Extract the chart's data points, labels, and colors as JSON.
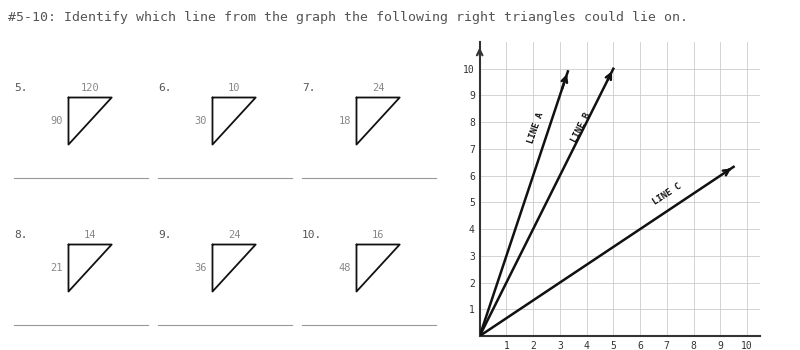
{
  "title": "#5-10: Identify which line from the graph the following right triangles could lie on.",
  "title_fontsize": 9.5,
  "title_color": "#555555",
  "bg_color": "#ffffff",
  "triangles": [
    {
      "num": "5.",
      "top_label": "120",
      "side_label": "90",
      "row": 0,
      "col": 0
    },
    {
      "num": "6.",
      "top_label": "10",
      "side_label": "30",
      "row": 0,
      "col": 1
    },
    {
      "num": "7.",
      "top_label": "24",
      "side_label": "18",
      "row": 0,
      "col": 2
    },
    {
      "num": "8.",
      "top_label": "14",
      "side_label": "21",
      "row": 1,
      "col": 0
    },
    {
      "num": "9.",
      "top_label": "24",
      "side_label": "36",
      "row": 1,
      "col": 1
    },
    {
      "num": "10.",
      "top_label": "16",
      "side_label": "48",
      "row": 1,
      "col": 2
    }
  ],
  "grid_color": "#cccccc",
  "axis_color": "#333333",
  "line_color": "#111111",
  "triangle_color": "#111111",
  "label_color": "#888888",
  "num_color": "#555555"
}
